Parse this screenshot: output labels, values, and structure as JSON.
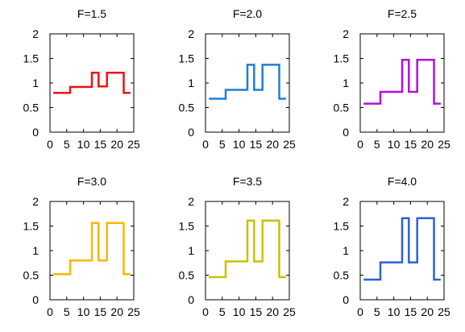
{
  "chart_data": [
    {
      "type": "line",
      "title": "F=1.5",
      "color": "#ee1111",
      "xlim": [
        0,
        25
      ],
      "ylim": [
        0,
        2
      ],
      "xticks": [
        "0",
        "5",
        "10",
        "15",
        "20",
        "25"
      ],
      "yticks": [
        "0",
        "0.5",
        "1",
        "1.5",
        "2"
      ],
      "grid": false,
      "x": [
        1,
        6,
        6,
        12.5,
        12.5,
        14.5,
        14.5,
        17,
        17,
        22,
        22,
        24
      ],
      "y": [
        0.8,
        0.8,
        0.92,
        0.92,
        1.21,
        1.21,
        0.93,
        0.93,
        1.21,
        1.21,
        0.8,
        0.8
      ]
    },
    {
      "type": "line",
      "title": "F=2.0",
      "color": "#1a7fdc",
      "xlim": [
        0,
        25
      ],
      "ylim": [
        0,
        2
      ],
      "xticks": [
        "0",
        "5",
        "10",
        "15",
        "20",
        "25"
      ],
      "yticks": [
        "0",
        "0.5",
        "1",
        "1.5",
        "2"
      ],
      "grid": false,
      "x": [
        1,
        6,
        6,
        12.5,
        12.5,
        14.5,
        14.5,
        17,
        17,
        22,
        22,
        24
      ],
      "y": [
        0.68,
        0.68,
        0.86,
        0.86,
        1.37,
        1.37,
        0.86,
        0.86,
        1.37,
        1.37,
        0.68,
        0.68
      ]
    },
    {
      "type": "line",
      "title": "F=2.5",
      "color": "#b010e0",
      "xlim": [
        0,
        25
      ],
      "ylim": [
        0,
        2
      ],
      "xticks": [
        "0",
        "5",
        "10",
        "15",
        "20",
        "25"
      ],
      "yticks": [
        "0",
        "0.5",
        "1",
        "1.5",
        "2"
      ],
      "grid": false,
      "x": [
        1,
        6,
        6,
        12.5,
        12.5,
        14.5,
        14.5,
        17,
        17,
        22,
        22,
        24
      ],
      "y": [
        0.58,
        0.58,
        0.82,
        0.82,
        1.47,
        1.47,
        0.82,
        0.82,
        1.47,
        1.47,
        0.58,
        0.58
      ]
    },
    {
      "type": "line",
      "title": "F=3.0",
      "color": "#f7b800",
      "xlim": [
        0,
        25
      ],
      "ylim": [
        0,
        2
      ],
      "xticks": [
        "0",
        "5",
        "10",
        "15",
        "20",
        "25"
      ],
      "yticks": [
        "0",
        "0.5",
        "1",
        "1.5",
        "2"
      ],
      "grid": false,
      "x": [
        1,
        6,
        6,
        12.5,
        12.5,
        14.5,
        14.5,
        17,
        17,
        22,
        22,
        24
      ],
      "y": [
        0.52,
        0.52,
        0.8,
        0.8,
        1.56,
        1.56,
        0.8,
        0.8,
        1.56,
        1.56,
        0.52,
        0.52
      ]
    },
    {
      "type": "line",
      "title": "F=3.5",
      "color": "#c8c200",
      "xlim": [
        0,
        25
      ],
      "ylim": [
        0,
        2
      ],
      "xticks": [
        "0",
        "5",
        "10",
        "15",
        "20",
        "25"
      ],
      "yticks": [
        "0",
        "0.5",
        "1",
        "1.5",
        "2"
      ],
      "grid": false,
      "x": [
        1,
        6,
        6,
        12.5,
        12.5,
        14.5,
        14.5,
        17,
        17,
        22,
        22,
        24
      ],
      "y": [
        0.46,
        0.46,
        0.78,
        0.78,
        1.61,
        1.61,
        0.78,
        0.78,
        1.61,
        1.61,
        0.46,
        0.46
      ]
    },
    {
      "type": "line",
      "title": "F=4.0",
      "color": "#2f5fd8",
      "xlim": [
        0,
        25
      ],
      "ylim": [
        0,
        2
      ],
      "xticks": [
        "0",
        "5",
        "10",
        "15",
        "20",
        "25"
      ],
      "yticks": [
        "0",
        "0.5",
        "1",
        "1.5",
        "2"
      ],
      "grid": false,
      "x": [
        1,
        6,
        6,
        12.5,
        12.5,
        14.5,
        14.5,
        17,
        17,
        22,
        22,
        24
      ],
      "y": [
        0.41,
        0.41,
        0.76,
        0.76,
        1.66,
        1.66,
        0.76,
        0.76,
        1.66,
        1.66,
        0.41,
        0.41
      ]
    }
  ]
}
